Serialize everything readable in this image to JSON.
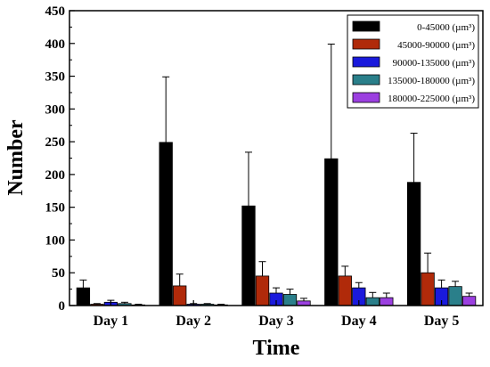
{
  "chart_data": {
    "type": "bar",
    "title": "",
    "xlabel": "Time",
    "ylabel": "Number",
    "ylim": [
      0,
      450
    ],
    "ytick_step": 50,
    "categories": [
      "Day 1",
      "Day 2",
      "Day 3",
      "Day 4",
      "Day 5"
    ],
    "series": [
      {
        "name": "0-45000 (µm³)",
        "color": "#000000",
        "values": [
          27,
          249,
          152,
          224,
          188
        ],
        "errors": [
          12,
          100,
          82,
          175,
          75
        ]
      },
      {
        "name": "45000-90000 (µm³)",
        "color": "#b02a0a",
        "values": [
          2,
          30,
          45,
          45,
          50
        ],
        "errors": [
          1,
          18,
          22,
          15,
          30
        ]
      },
      {
        "name": "90000-135000 (µm³)",
        "color": "#1a1adc",
        "values": [
          5,
          2,
          19,
          27,
          27
        ],
        "errors": [
          3,
          1,
          8,
          8,
          12
        ]
      },
      {
        "name": "135000-180000 (µm³)",
        "color": "#2a7f8a",
        "values": [
          3,
          2,
          17,
          12,
          29
        ],
        "errors": [
          2,
          1,
          8,
          8,
          8
        ]
      },
      {
        "name": "180000-225000 (µm³)",
        "color": "#9b3fe0",
        "values": [
          1,
          1,
          7,
          12,
          14
        ],
        "errors": [
          1,
          1,
          4,
          7,
          5
        ]
      }
    ],
    "grid": false,
    "legend_position": "top-right"
  }
}
